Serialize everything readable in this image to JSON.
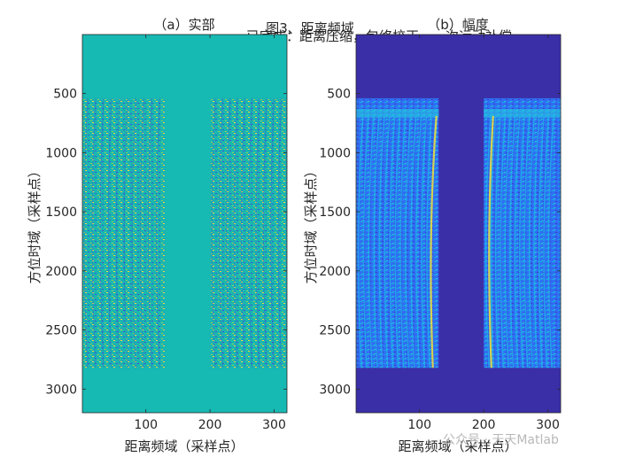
{
  "figure": {
    "suptitle_line1": "图3、距离频域",
    "suptitle_line2": "已完成：距离压缩，包络校正，一次运动补偿"
  },
  "watermark": "公众号 · 天天Matlab",
  "colors": {
    "bg_teal": "#17b9b3",
    "bg_navy": "#3b2fa8",
    "amp_blue": "#2f6df5",
    "accent_yellow": "#f2e23a"
  },
  "chart_data": [
    {
      "type": "heatmap",
      "title": "（a）实部",
      "xlabel": "距离频域（采样点）",
      "ylabel": "方位时域（采样点）",
      "xlim": [
        1,
        320
      ],
      "ylim": [
        3200,
        1
      ],
      "xticks": [
        100,
        200,
        300
      ],
      "yticks": [
        500,
        1000,
        1500,
        2000,
        2500,
        3000
      ],
      "signal_rows": [
        540,
        2820
      ],
      "gap_columns": [
        130,
        200
      ],
      "colormap": "parula"
    },
    {
      "type": "heatmap",
      "title": "（b）幅度",
      "xlabel": "距离频域（采样点）",
      "ylabel": "方位时域（采样点）",
      "xlim": [
        1,
        320
      ],
      "ylim": [
        3200,
        1
      ],
      "xticks": [
        100,
        200,
        300
      ],
      "yticks": [
        500,
        1000,
        1500,
        2000,
        2500,
        3000
      ],
      "signal_rows": [
        540,
        2820
      ],
      "gap_columns": [
        130,
        200
      ],
      "colormap": "parula"
    }
  ]
}
